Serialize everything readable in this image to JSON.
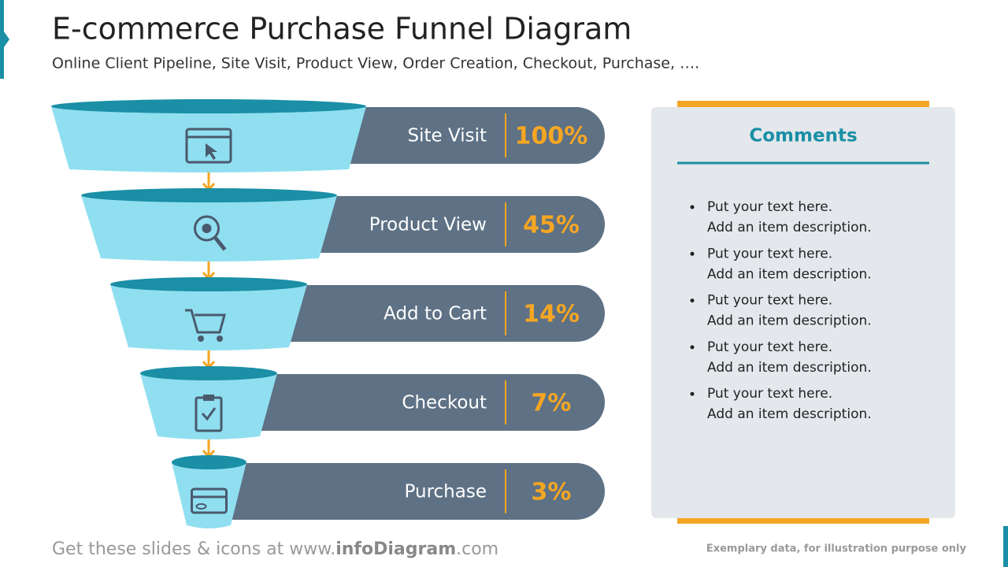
{
  "header": {
    "title": "E-commerce Purchase Funnel Diagram",
    "subtitle": "Online Client Pipeline, Site Visit, Product View, Order Creation, Checkout, Purchase, …."
  },
  "stages": [
    {
      "label": "Site Visit",
      "percent": "100%"
    },
    {
      "label": "Product View",
      "percent": "45%"
    },
    {
      "label": "Add to Cart",
      "percent": "14%"
    },
    {
      "label": "Checkout",
      "percent": "7%"
    },
    {
      "label": "Purchase",
      "percent": "3%"
    }
  ],
  "comments": {
    "title": "Comments",
    "items": [
      {
        "text": "Put your text here.",
        "description": "Add an item description."
      },
      {
        "text": "Put your text here.",
        "description": "Add an item description."
      },
      {
        "text": "Put your text here.",
        "description": "Add an item description."
      },
      {
        "text": "Put your text here.",
        "description": "Add an item description."
      },
      {
        "text": "Put your text here.",
        "description": "Add an item description."
      }
    ]
  },
  "footer": {
    "prefix": "Get these slides & icons at www.",
    "brand": "infoDiagram",
    "suffix": ".com",
    "note": "Exemplary data, for illustration purpose only"
  }
}
